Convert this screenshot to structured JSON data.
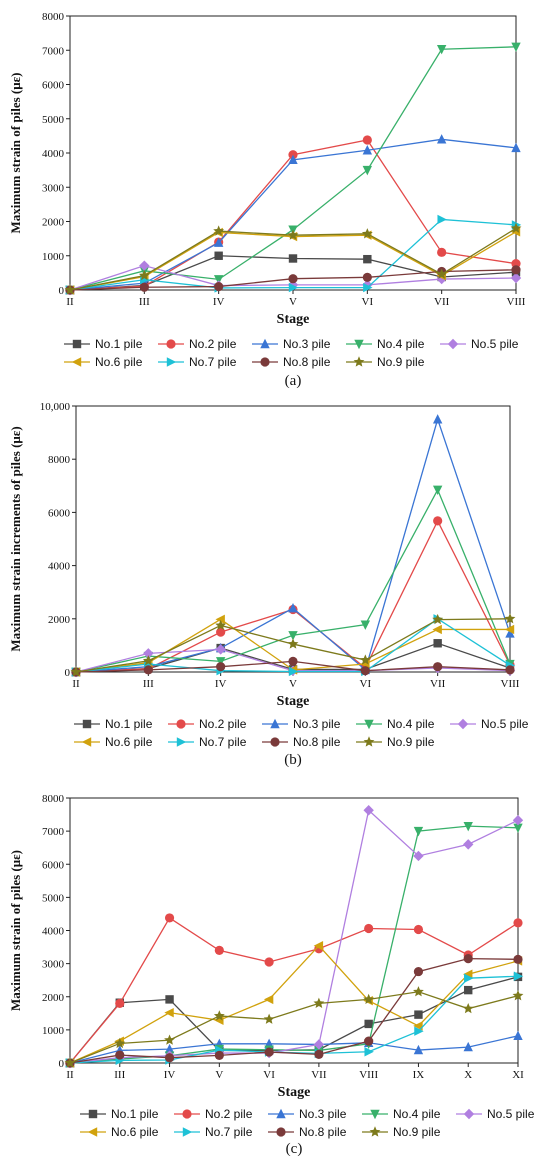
{
  "series_colors": [
    "#4a4a4a",
    "#e34a4a",
    "#3a75d4",
    "#38b06a",
    "#b07fe0",
    "#d1a20d",
    "#1ec1d6",
    "#7a3a3a",
    "#7d7a1c"
  ],
  "chart_data": [
    {
      "type": "line",
      "panel_label": "(a)",
      "ylabel": "Maximum strain of piles (με)",
      "xlabel": "Stage",
      "categories": [
        "II",
        "III",
        "IV",
        "V",
        "VI",
        "VII",
        "VIII"
      ],
      "ylim": [
        0,
        8000
      ],
      "yticks": [
        0,
        1000,
        2000,
        3000,
        4000,
        5000,
        6000,
        7000,
        8000
      ],
      "ytick_labels": [
        "0",
        "1000",
        "2000",
        "3000",
        "4000",
        "5000",
        "6000",
        "7000",
        "8000"
      ],
      "legend_cols": 5,
      "series": [
        {
          "name": "No.1 pile",
          "marker": "square",
          "values": [
            0,
            130,
            1000,
            920,
            900,
            380,
            520
          ]
        },
        {
          "name": "No.2 pile",
          "marker": "circle",
          "values": [
            0,
            110,
            1400,
            3950,
            4380,
            1100,
            770
          ]
        },
        {
          "name": "No.3 pile",
          "marker": "triangle-up",
          "values": [
            0,
            200,
            1380,
            3800,
            4080,
            4400,
            4150
          ]
        },
        {
          "name": "No.4 pile",
          "marker": "triangle-down",
          "values": [
            0,
            560,
            310,
            1760,
            3500,
            7030,
            7100
          ]
        },
        {
          "name": "No.5 pile",
          "marker": "diamond",
          "values": [
            0,
            710,
            130,
            150,
            150,
            320,
            350
          ]
        },
        {
          "name": "No.6 pile",
          "marker": "triangle-left",
          "values": [
            0,
            390,
            1680,
            1560,
            1600,
            420,
            1700
          ]
        },
        {
          "name": "No.7 pile",
          "marker": "triangle-right",
          "values": [
            0,
            300,
            60,
            70,
            70,
            2060,
            1900
          ]
        },
        {
          "name": "No.8 pile",
          "marker": "circle",
          "values": [
            0,
            80,
            100,
            330,
            370,
            540,
            590
          ]
        },
        {
          "name": "No.9 pile",
          "marker": "star",
          "values": [
            0,
            420,
            1720,
            1600,
            1640,
            460,
            1800
          ]
        }
      ]
    },
    {
      "type": "line",
      "panel_label": "(b)",
      "ylabel": "Maximum strain increments of piles (με)",
      "xlabel": "Stage",
      "categories": [
        "II",
        "III",
        "IV",
        "V",
        "VI",
        "VII",
        "VIII"
      ],
      "ylim": [
        0,
        10000
      ],
      "yticks": [
        0,
        2000,
        4000,
        6000,
        8000,
        10000
      ],
      "ytick_labels": [
        "0",
        "2000",
        "4000",
        "6000",
        "8000",
        "10,000"
      ],
      "legend_cols": 5,
      "series": [
        {
          "name": "No.1 pile",
          "marker": "square",
          "values": [
            0,
            130,
            900,
            100,
            100,
            1080,
            150
          ]
        },
        {
          "name": "No.2 pile",
          "marker": "circle",
          "values": [
            0,
            120,
            1500,
            2350,
            150,
            5680,
            270
          ]
        },
        {
          "name": "No.3 pile",
          "marker": "triangle-up",
          "values": [
            0,
            200,
            900,
            2400,
            80,
            9500,
            1450
          ]
        },
        {
          "name": "No.4 pile",
          "marker": "triangle-down",
          "values": [
            0,
            600,
            400,
            1380,
            1780,
            6850,
            300
          ]
        },
        {
          "name": "No.5 pile",
          "marker": "diamond",
          "values": [
            0,
            700,
            850,
            50,
            50,
            150,
            50
          ]
        },
        {
          "name": "No.6 pile",
          "marker": "triangle-left",
          "values": [
            0,
            350,
            1980,
            80,
            300,
            1600,
            1600
          ]
        },
        {
          "name": "No.7 pile",
          "marker": "triangle-right",
          "values": [
            0,
            300,
            50,
            20,
            20,
            2000,
            250
          ]
        },
        {
          "name": "No.8 pile",
          "marker": "circle",
          "values": [
            0,
            80,
            200,
            400,
            50,
            200,
            80
          ]
        },
        {
          "name": "No.9 pile",
          "marker": "star",
          "values": [
            0,
            420,
            1750,
            1050,
            450,
            1970,
            2000
          ]
        }
      ]
    },
    {
      "type": "line",
      "panel_label": "(c)",
      "ylabel": "Maximum strain of piles (με)",
      "xlabel": "Stage",
      "categories": [
        "II",
        "III",
        "IV",
        "V",
        "VI",
        "VII",
        "VIII",
        "IX",
        "X",
        "XI"
      ],
      "ylim": [
        0,
        8000
      ],
      "yticks": [
        0,
        1000,
        2000,
        3000,
        4000,
        5000,
        6000,
        7000,
        8000
      ],
      "ytick_labels": [
        "0",
        "1000",
        "2000",
        "3000",
        "4000",
        "5000",
        "6000",
        "7000",
        "8000"
      ],
      "legend_cols": 5,
      "series": [
        {
          "name": "No.1 pile",
          "marker": "square",
          "values": [
            0,
            1820,
            1920,
            380,
            380,
            400,
            1180,
            1460,
            2200,
            2600
          ]
        },
        {
          "name": "No.2 pile",
          "marker": "circle",
          "values": [
            0,
            1800,
            4380,
            3400,
            3050,
            3450,
            4060,
            4030,
            3260,
            4230
          ]
        },
        {
          "name": "No.3 pile",
          "marker": "triangle-up",
          "values": [
            0,
            380,
            420,
            580,
            580,
            560,
            610,
            390,
            480,
            820
          ]
        },
        {
          "name": "No.4 pile",
          "marker": "triangle-down",
          "values": [
            0,
            120,
            220,
            420,
            400,
            380,
            580,
            7000,
            7150,
            7100
          ]
        },
        {
          "name": "No.5 pile",
          "marker": "diamond",
          "values": [
            0,
            160,
            220,
            300,
            300,
            560,
            7630,
            6250,
            6600,
            7330
          ]
        },
        {
          "name": "No.6 pile",
          "marker": "triangle-left",
          "values": [
            0,
            660,
            1520,
            1290,
            1920,
            3540,
            1880,
            1120,
            2680,
            3080
          ]
        },
        {
          "name": "No.7 pile",
          "marker": "triangle-right",
          "values": [
            0,
            80,
            90,
            390,
            330,
            290,
            340,
            960,
            2560,
            2620
          ]
        },
        {
          "name": "No.8 pile",
          "marker": "circle",
          "values": [
            0,
            240,
            160,
            230,
            330,
            260,
            660,
            2760,
            3150,
            3130
          ]
        },
        {
          "name": "No.9 pile",
          "marker": "star",
          "values": [
            0,
            590,
            690,
            1420,
            1320,
            1800,
            1920,
            2150,
            1640,
            2030
          ]
        }
      ]
    }
  ]
}
